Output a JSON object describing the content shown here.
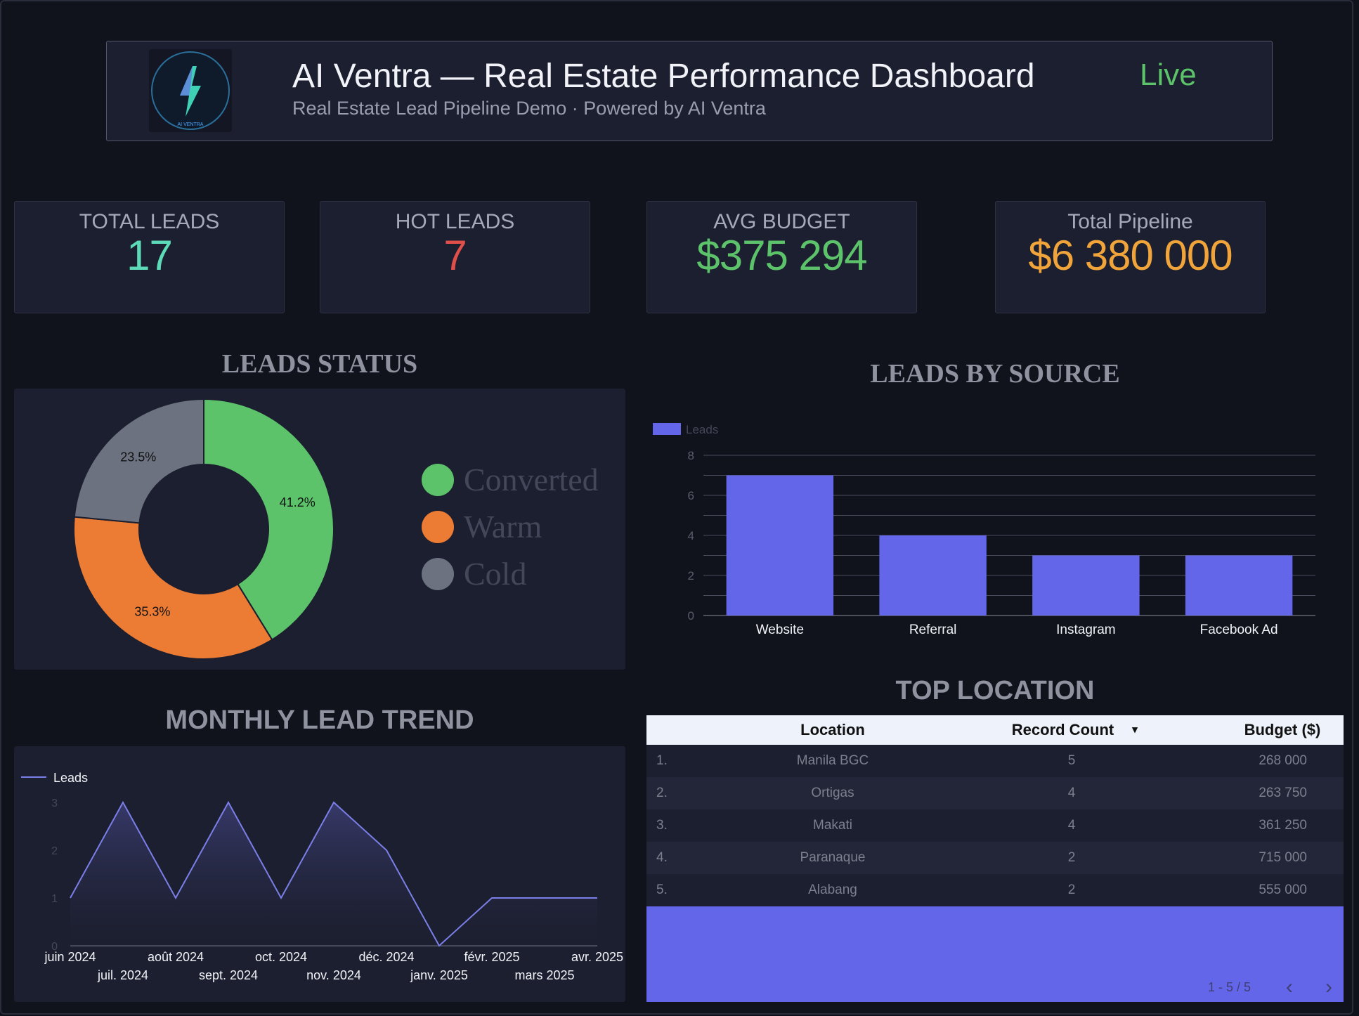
{
  "header": {
    "title": "AI Ventra — Real Estate Performance Dashboard",
    "subtitle": "Real Estate Lead Pipeline Demo · Powered by AI Ventra",
    "status": "Live",
    "logo_text": "AI VENTRA"
  },
  "kpis": [
    {
      "label": "TOTAL LEADS",
      "value": "17",
      "color": "#5ddab7"
    },
    {
      "label": "HOT LEADS",
      "value": "7",
      "color": "#e0504a"
    },
    {
      "label": "AVG BUDGET",
      "value": "$375 294",
      "color": "#5cc36b"
    },
    {
      "label": "Total Pipeline",
      "value": "$6 380 000",
      "color": "#f0a43a"
    }
  ],
  "sections": {
    "leads_status": "LEADS STATUS",
    "leads_by_source": "LEADS BY SOURCE",
    "monthly_trend": "MONTHLY LEAD TREND",
    "top_location": "TOP LOCATION"
  },
  "chart_data": [
    {
      "type": "pie",
      "title": "LEADS STATUS",
      "categories": [
        "Converted",
        "Warm",
        "Cold"
      ],
      "values": [
        41.2,
        35.3,
        23.5
      ],
      "labels": [
        "41.2%",
        "35.3%",
        "23.5%"
      ],
      "colors": [
        "#5cc36b",
        "#ec7b34",
        "#6c7280"
      ],
      "legend": "right"
    },
    {
      "type": "bar",
      "title": "LEADS BY SOURCE",
      "categories": [
        "Website",
        "Referral",
        "Instagram",
        "Facebook Ad"
      ],
      "series": [
        {
          "name": "Leads",
          "values": [
            7,
            4,
            3,
            3
          ]
        }
      ],
      "ylim": [
        0,
        8
      ],
      "yticks": [
        "0",
        "2",
        "4",
        "6",
        "8"
      ],
      "color": "#6466ea",
      "legend": "top-left",
      "grid": true
    },
    {
      "type": "area",
      "title": "MONTHLY LEAD TREND",
      "x": [
        "juin 2024",
        "juil. 2024",
        "août 2024",
        "sept. 2024",
        "oct. 2024",
        "nov. 2024",
        "déc. 2024",
        "janv. 2025",
        "févr. 2025",
        "mars 2025",
        "avr. 2025"
      ],
      "series": [
        {
          "name": "Leads",
          "values": [
            1,
            3,
            1,
            3,
            1,
            3,
            2,
            0,
            1,
            1,
            1
          ]
        }
      ],
      "ylim": [
        0,
        3
      ],
      "yticks": [
        "0",
        "1",
        "2",
        "3"
      ],
      "color": "#7b7fe8",
      "legend": "top-left"
    }
  ],
  "table": {
    "columns": [
      "Location",
      "Record Count",
      "Budget ($)"
    ],
    "sort_indicator": "▾",
    "rows": [
      {
        "idx": "1.",
        "location": "Manila BGC",
        "count": "5",
        "budget": "268 000"
      },
      {
        "idx": "2.",
        "location": "Ortigas",
        "count": "4",
        "budget": "263 750"
      },
      {
        "idx": "3.",
        "location": "Makati",
        "count": "4",
        "budget": "361 250"
      },
      {
        "idx": "4.",
        "location": "Paranaque",
        "count": "2",
        "budget": "715 000"
      },
      {
        "idx": "5.",
        "location": "Alabang",
        "count": "2",
        "budget": "555 000"
      }
    ],
    "pagination": "1 - 5 / 5",
    "prev": "‹",
    "next": "›"
  }
}
